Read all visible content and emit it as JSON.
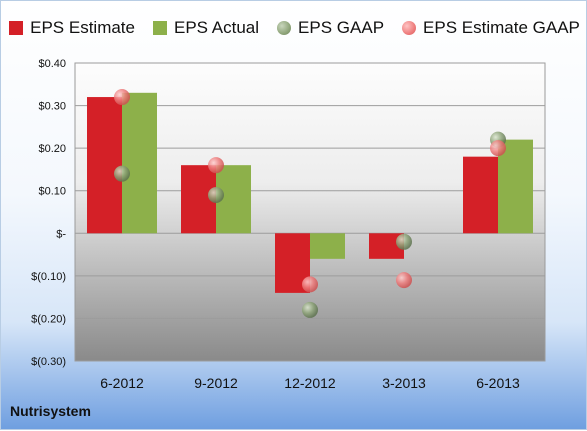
{
  "chart_data": {
    "type": "bar",
    "categories": [
      "6-2012",
      "9-2012",
      "12-2012",
      "3-2013",
      "6-2013"
    ],
    "series": [
      {
        "name": "EPS Estimate",
        "kind": "bar",
        "color": "#d42027",
        "values": [
          0.32,
          0.16,
          -0.14,
          -0.06,
          0.18
        ]
      },
      {
        "name": "EPS Actual",
        "kind": "bar",
        "color": "#8db04a",
        "values": [
          0.33,
          0.16,
          -0.06,
          0.0,
          0.22
        ]
      },
      {
        "name": "EPS GAAP",
        "kind": "scatter",
        "color": "#8fa57a",
        "values": [
          0.14,
          0.09,
          -0.18,
          -0.02,
          0.22
        ]
      },
      {
        "name": "EPS Estimate GAAP",
        "kind": "scatter",
        "color": "#ee7d7d",
        "values": [
          0.32,
          0.16,
          -0.12,
          -0.11,
          0.2
        ]
      }
    ],
    "ylim": [
      -0.3,
      0.4
    ],
    "yticks": [
      0.4,
      0.3,
      0.2,
      0.1,
      0.0,
      -0.1,
      -0.2,
      -0.3
    ],
    "ytick_labels": [
      "$0.40",
      "$0.30",
      "$0.20",
      "$0.10",
      "$-",
      "$(0.10)",
      "$(0.20)",
      "$(0.30)"
    ],
    "grid": true,
    "legend_position": "top"
  },
  "footer": {
    "company": "Nutrisystem"
  }
}
